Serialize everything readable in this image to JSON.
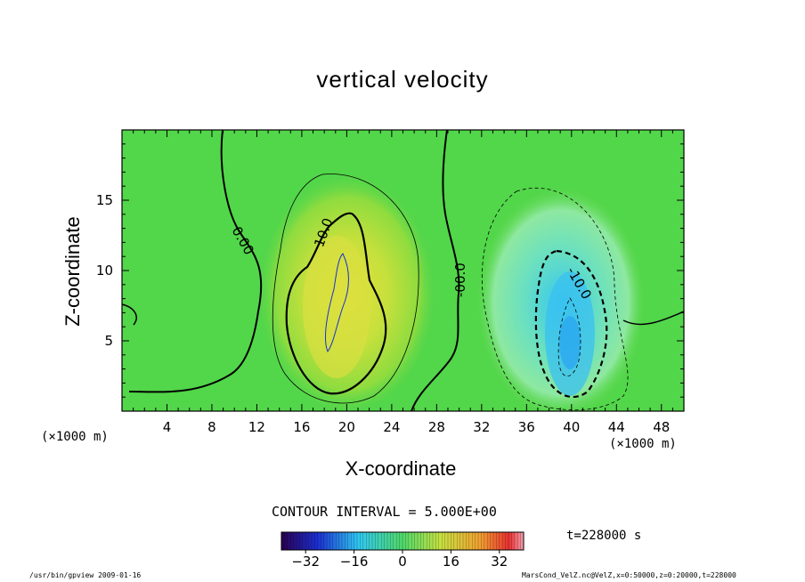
{
  "chart_data": {
    "type": "heatmap",
    "title": "vertical velocity",
    "xlabel": "X-coordinate",
    "ylabel": "Z-coordinate",
    "x_unit": "(×1000 m)",
    "y_unit": "(×1000 m)",
    "xlim": [
      0,
      50
    ],
    "ylim": [
      0,
      20
    ],
    "x_ticks": [
      4,
      8,
      12,
      16,
      20,
      24,
      28,
      32,
      36,
      40,
      44,
      48
    ],
    "y_ticks": [
      5,
      10,
      15
    ],
    "contour_interval_text": "CONTOUR INTERVAL = 5.000E+00",
    "contour_labels": [
      "0.00",
      "10.0",
      "-00.0",
      "-10.0"
    ],
    "colorbar": {
      "min": -40,
      "max": 40,
      "ticks": [
        -32,
        -16,
        0,
        16,
        32
      ],
      "colormap": "rainbow"
    },
    "features": [
      {
        "kind": "updraft",
        "center_x": 19,
        "center_z": 8,
        "peak_value": 15
      },
      {
        "kind": "downdraft",
        "center_x": 39.5,
        "center_z": 6,
        "peak_value": -15
      }
    ],
    "time_label": "t=228000 s"
  },
  "footer": {
    "left": "/usr/bin/gpview  2009-01-16",
    "right": "MarsCond_VelZ.nc@VelZ,x=0:50000,z=0:20000,t=228000"
  }
}
